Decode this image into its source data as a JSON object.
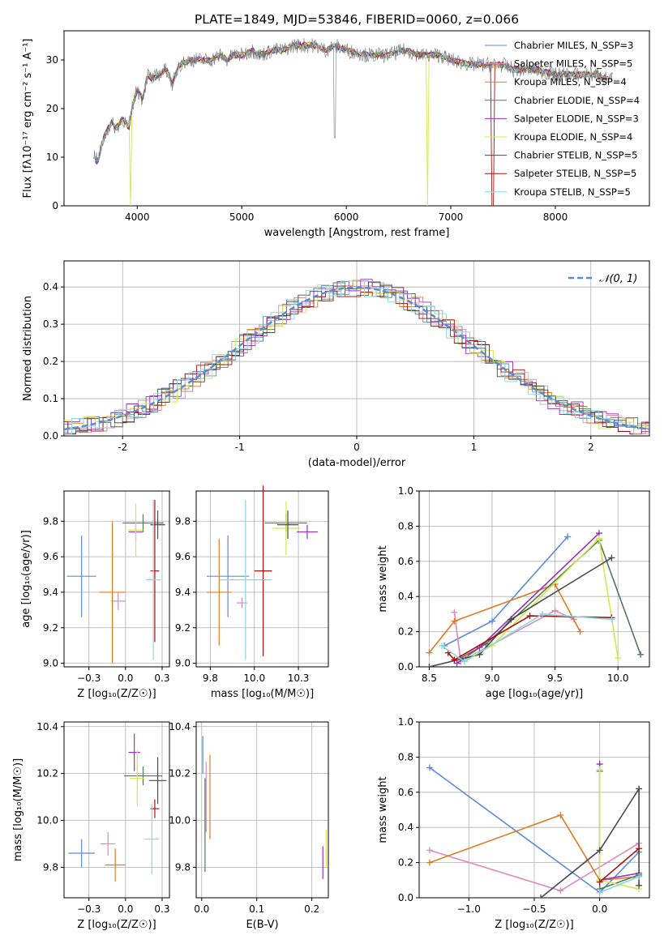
{
  "colors": [
    "#5b8bd8",
    "#e088bb",
    "#e07b22",
    "#4f7a5a",
    "#9a2fc0",
    "#d4e84a",
    "#4a4a4a",
    "#aa1111",
    "#88d8df"
  ],
  "chart_data": [
    {
      "type": "line",
      "title": "PLATE=1849, MJD=53846, FIBERID=0060, z=0.066",
      "xlabel": "wavelength [Angstrom, rest frame]",
      "ylabel": "Flux [fλ10⁻¹⁷ erg cm⁻² s⁻¹ A⁻¹]",
      "xlim": [
        3300,
        8900
      ],
      "ylim": [
        0,
        36
      ],
      "xticks": [
        4000,
        5000,
        6000,
        7000,
        8000
      ],
      "yticks": [
        0,
        10,
        20,
        30
      ],
      "legend": [
        "Chabrier MILES, N_SSP=3",
        "Salpeter MILES, N_SSP=5",
        "Kroupa MILES, N_SSP=4",
        "Chabrier ELODIE, N_SSP=4",
        "Salpeter ELODIE, N_SSP=3",
        "Kroupa ELODIE, N_SSP=4",
        "Chabrier STELIB, N_SSP=5",
        "Salpeter STELIB, N_SSP=5",
        "Kroupa STELIB, N_SSP=5"
      ],
      "legend_position": "right",
      "spectrum_points": [
        [
          3580,
          11
        ],
        [
          3620,
          9
        ],
        [
          3680,
          14
        ],
        [
          3750,
          17
        ],
        [
          3800,
          16
        ],
        [
          3860,
          18
        ],
        [
          3920,
          16
        ],
        [
          3960,
          21
        ],
        [
          4000,
          24
        ],
        [
          4050,
          22
        ],
        [
          4100,
          27
        ],
        [
          4150,
          26
        ],
        [
          4200,
          27
        ],
        [
          4280,
          28
        ],
        [
          4340,
          25
        ],
        [
          4400,
          29
        ],
        [
          4500,
          30
        ],
        [
          4600,
          30
        ],
        [
          4700,
          30
        ],
        [
          4800,
          31
        ],
        [
          4860,
          30
        ],
        [
          4920,
          31
        ],
        [
          5000,
          31
        ],
        [
          5100,
          32
        ],
        [
          5180,
          31
        ],
        [
          5300,
          32
        ],
        [
          5400,
          32
        ],
        [
          5500,
          33
        ],
        [
          5600,
          33
        ],
        [
          5700,
          33
        ],
        [
          5800,
          32
        ],
        [
          5890,
          33
        ],
        [
          6000,
          32
        ],
        [
          6200,
          31
        ],
        [
          6400,
          31
        ],
        [
          6563,
          32
        ],
        [
          6700,
          31
        ],
        [
          6900,
          31
        ],
        [
          7000,
          30
        ],
        [
          7200,
          29
        ],
        [
          7400,
          29
        ],
        [
          7500,
          29
        ],
        [
          7600,
          28
        ],
        [
          7800,
          28
        ],
        [
          8000,
          27
        ],
        [
          8200,
          27
        ],
        [
          8400,
          27
        ],
        [
          8500,
          26
        ]
      ]
    },
    {
      "type": "line",
      "xlabel": "(data-model)/error",
      "ylabel": "Normed distribution",
      "xlim": [
        -2.5,
        2.5
      ],
      "ylim": [
        0,
        0.47
      ],
      "xticks": [
        -2,
        -1,
        0,
        1,
        2
      ],
      "yticks": [
        0.0,
        0.1,
        0.2,
        0.3,
        0.4
      ],
      "legend": [
        "𝒩(0, 1)"
      ],
      "legend_position": "top-right"
    },
    {
      "type": "scatter",
      "xlabel": "Z [log₁₀(Z/Z☉)]",
      "ylabel": "age  [log₁₀(age/yr)]",
      "xlim": [
        -0.42,
        0.3
      ],
      "ylim": [
        8.98,
        9.97
      ],
      "xticks": [
        -0.25,
        0.0,
        0.25
      ],
      "yticks": [
        9.0,
        9.2,
        9.4,
        9.6,
        9.8
      ],
      "points": [
        {
          "x": -0.3,
          "y": 9.49,
          "xerr": 0.1,
          "yerr": 0.23
        },
        {
          "x": -0.05,
          "y": 9.35,
          "xerr": 0.05,
          "yerr": 0.05
        },
        {
          "x": -0.09,
          "y": 9.4,
          "xerr": 0.09,
          "yerr": 0.4
        },
        {
          "x": 0.12,
          "y": 9.79,
          "xerr": 0.14,
          "yerr": 0.05
        },
        {
          "x": 0.07,
          "y": 9.74,
          "xerr": 0.05,
          "yerr": 0.05
        },
        {
          "x": 0.07,
          "y": 9.75,
          "xerr": 0.05,
          "yerr": 0.15
        },
        {
          "x": 0.22,
          "y": 9.78,
          "xerr": 0.05,
          "yerr": 0.08
        },
        {
          "x": 0.2,
          "y": 9.52,
          "xerr": 0.03,
          "yerr": 0.4
        },
        {
          "x": 0.19,
          "y": 9.47,
          "xerr": 0.05,
          "yerr": 0.45
        }
      ]
    },
    {
      "type": "scatter",
      "xlabel": "mass [log₁₀(M/M☉)]",
      "ylabel": "",
      "xlim": [
        9.67,
        10.42
      ],
      "ylim": [
        8.98,
        9.97
      ],
      "xticks": [
        9.75,
        10.0,
        10.25
      ],
      "yticks": [
        9.0,
        9.2,
        9.4,
        9.6,
        9.8
      ],
      "points": [
        {
          "x": 9.85,
          "y": 9.49,
          "xerr": 0.12,
          "yerr": 0.23
        },
        {
          "x": 9.93,
          "y": 9.34,
          "xerr": 0.03,
          "yerr": 0.03
        },
        {
          "x": 9.8,
          "y": 9.4,
          "xerr": 0.07,
          "yerr": 0.3
        },
        {
          "x": 10.18,
          "y": 9.79,
          "xerr": 0.12,
          "yerr": 0.05
        },
        {
          "x": 10.3,
          "y": 9.74,
          "xerr": 0.06,
          "yerr": 0.04
        },
        {
          "x": 10.18,
          "y": 9.76,
          "xerr": 0.08,
          "yerr": 0.15
        },
        {
          "x": 10.19,
          "y": 9.78,
          "xerr": 0.06,
          "yerr": 0.08
        },
        {
          "x": 10.05,
          "y": 9.52,
          "xerr": 0.05,
          "yerr": 0.48
        },
        {
          "x": 9.95,
          "y": 9.47,
          "xerr": 0.15,
          "yerr": 0.45
        }
      ]
    },
    {
      "type": "line",
      "xlabel": "age  [log₁₀(age/yr)]",
      "ylabel": "mass weight",
      "xlim": [
        8.42,
        10.25
      ],
      "ylim": [
        0,
        1.0
      ],
      "xticks": [
        8.5,
        9.0,
        9.5,
        10.0
      ],
      "yticks": [
        0.0,
        0.2,
        0.4,
        0.6,
        0.8,
        1.0
      ],
      "series": [
        {
          "x": [
            8.62,
            9.0,
            9.6
          ],
          "y": [
            0.12,
            0.26,
            0.74
          ]
        },
        {
          "x": [
            8.7,
            8.75,
            9.5,
            9.65
          ],
          "y": [
            0.31,
            0.03,
            0.32,
            0.27
          ]
        },
        {
          "x": [
            8.5,
            8.7,
            9.5,
            9.7
          ],
          "y": [
            0.08,
            0.26,
            0.47,
            0.2
          ]
        },
        {
          "x": [
            8.75,
            8.95,
            9.85,
            10.18
          ],
          "y": [
            0.05,
            0.13,
            0.72,
            0.07
          ]
        },
        {
          "x": [
            8.72,
            8.9,
            9.85
          ],
          "y": [
            0.02,
            0.11,
            0.76
          ]
        },
        {
          "x": [
            8.8,
            9.0,
            9.85,
            10.0
          ],
          "y": [
            0.05,
            0.12,
            0.73,
            0.05
          ]
        },
        {
          "x": [
            8.5,
            8.9,
            9.15,
            9.95
          ],
          "y": [
            0.0,
            0.07,
            0.27,
            0.62
          ]
        },
        {
          "x": [
            8.65,
            8.7,
            9.3,
            9.95
          ],
          "y": [
            0.08,
            0.04,
            0.29,
            0.28
          ]
        },
        {
          "x": [
            8.6,
            8.78,
            9.4,
            9.95
          ],
          "y": [
            0.12,
            0.03,
            0.3,
            0.27
          ]
        }
      ]
    },
    {
      "type": "scatter",
      "xlabel": "Z [log₁₀(Z/Z☉)]",
      "ylabel": "mass [log₁₀(M/M☉)]",
      "xlim": [
        -0.42,
        0.3
      ],
      "ylim": [
        9.67,
        10.42
      ],
      "xticks": [
        -0.25,
        0.0,
        0.25
      ],
      "yticks": [
        9.8,
        10.0,
        10.2,
        10.4
      ],
      "points": [
        {
          "x": -0.3,
          "y": 9.86,
          "xerr": 0.09,
          "yerr": 0.06
        },
        {
          "x": -0.12,
          "y": 9.9,
          "xerr": 0.05,
          "yerr": 0.05
        },
        {
          "x": -0.07,
          "y": 9.81,
          "xerr": 0.07,
          "yerr": 0.07
        },
        {
          "x": 0.12,
          "y": 10.19,
          "xerr": 0.13,
          "yerr": 0.04
        },
        {
          "x": 0.06,
          "y": 10.29,
          "xerr": 0.04,
          "yerr": 0.08
        },
        {
          "x": 0.08,
          "y": 10.18,
          "xerr": 0.05,
          "yerr": 0.12
        },
        {
          "x": 0.22,
          "y": 10.17,
          "xerr": 0.06,
          "yerr": 0.1
        },
        {
          "x": 0.2,
          "y": 10.05,
          "xerr": 0.03,
          "yerr": 0.04
        },
        {
          "x": 0.18,
          "y": 9.92,
          "xerr": 0.05,
          "yerr": 0.15
        }
      ]
    },
    {
      "type": "scatter",
      "xlabel": "E(B-V)",
      "ylabel": "",
      "xlim": [
        -0.01,
        0.23
      ],
      "ylim": [
        9.67,
        10.42
      ],
      "xticks": [
        0.0,
        0.1,
        0.2
      ],
      "yticks": [
        9.8,
        10.0,
        10.2,
        10.4
      ],
      "points": [
        {
          "x": 0.002,
          "y": 10.28,
          "yerr": 0.08
        },
        {
          "x": 0.008,
          "y": 10.1,
          "yerr": 0.15
        },
        {
          "x": 0.015,
          "y": 10.1,
          "yerr": 0.18
        },
        {
          "x": 0.006,
          "y": 9.98,
          "yerr": 0.2
        },
        {
          "x": 0.22,
          "y": 9.82,
          "yerr": 0.07
        },
        {
          "x": 0.226,
          "y": 9.88,
          "yerr": 0.08
        }
      ]
    },
    {
      "type": "line",
      "xlabel": "Z [log₁₀(Z/Z☉)]",
      "ylabel": "mass weight",
      "xlim": [
        -1.38,
        0.38
      ],
      "ylim": [
        0,
        1.0
      ],
      "xticks": [
        -1.0,
        -0.5,
        0.0
      ],
      "yticks": [
        0.0,
        0.2,
        0.4,
        0.6,
        0.8,
        1.0
      ],
      "series": [
        {
          "x": [
            -1.3,
            0.0,
            0.3
          ],
          "y": [
            0.74,
            0.03,
            0.26
          ]
        },
        {
          "x": [
            -1.3,
            -0.3,
            0.3
          ],
          "y": [
            0.27,
            0.04,
            0.31
          ]
        },
        {
          "x": [
            -1.3,
            -0.3,
            0.0,
            0.3
          ],
          "y": [
            0.2,
            0.47,
            0.1,
            0.12
          ]
        },
        {
          "x": [
            0.0,
            0.0,
            0.3
          ],
          "y": [
            0.72,
            0.05,
            0.13
          ]
        },
        {
          "x": [
            0.0,
            0.0,
            0.3
          ],
          "y": [
            0.76,
            0.1,
            0.14
          ]
        },
        {
          "x": [
            0.0,
            0.0,
            0.3
          ],
          "y": [
            0.73,
            0.1,
            0.05
          ]
        },
        {
          "x": [
            -0.45,
            0.0,
            0.3,
            0.3
          ],
          "y": [
            0.0,
            0.27,
            0.62,
            0.07
          ]
        },
        {
          "x": [
            0.0,
            0.3
          ],
          "y": [
            0.09,
            0.28
          ]
        },
        {
          "x": [
            0.0,
            0.3
          ],
          "y": [
            0.03,
            0.12
          ]
        }
      ]
    }
  ]
}
